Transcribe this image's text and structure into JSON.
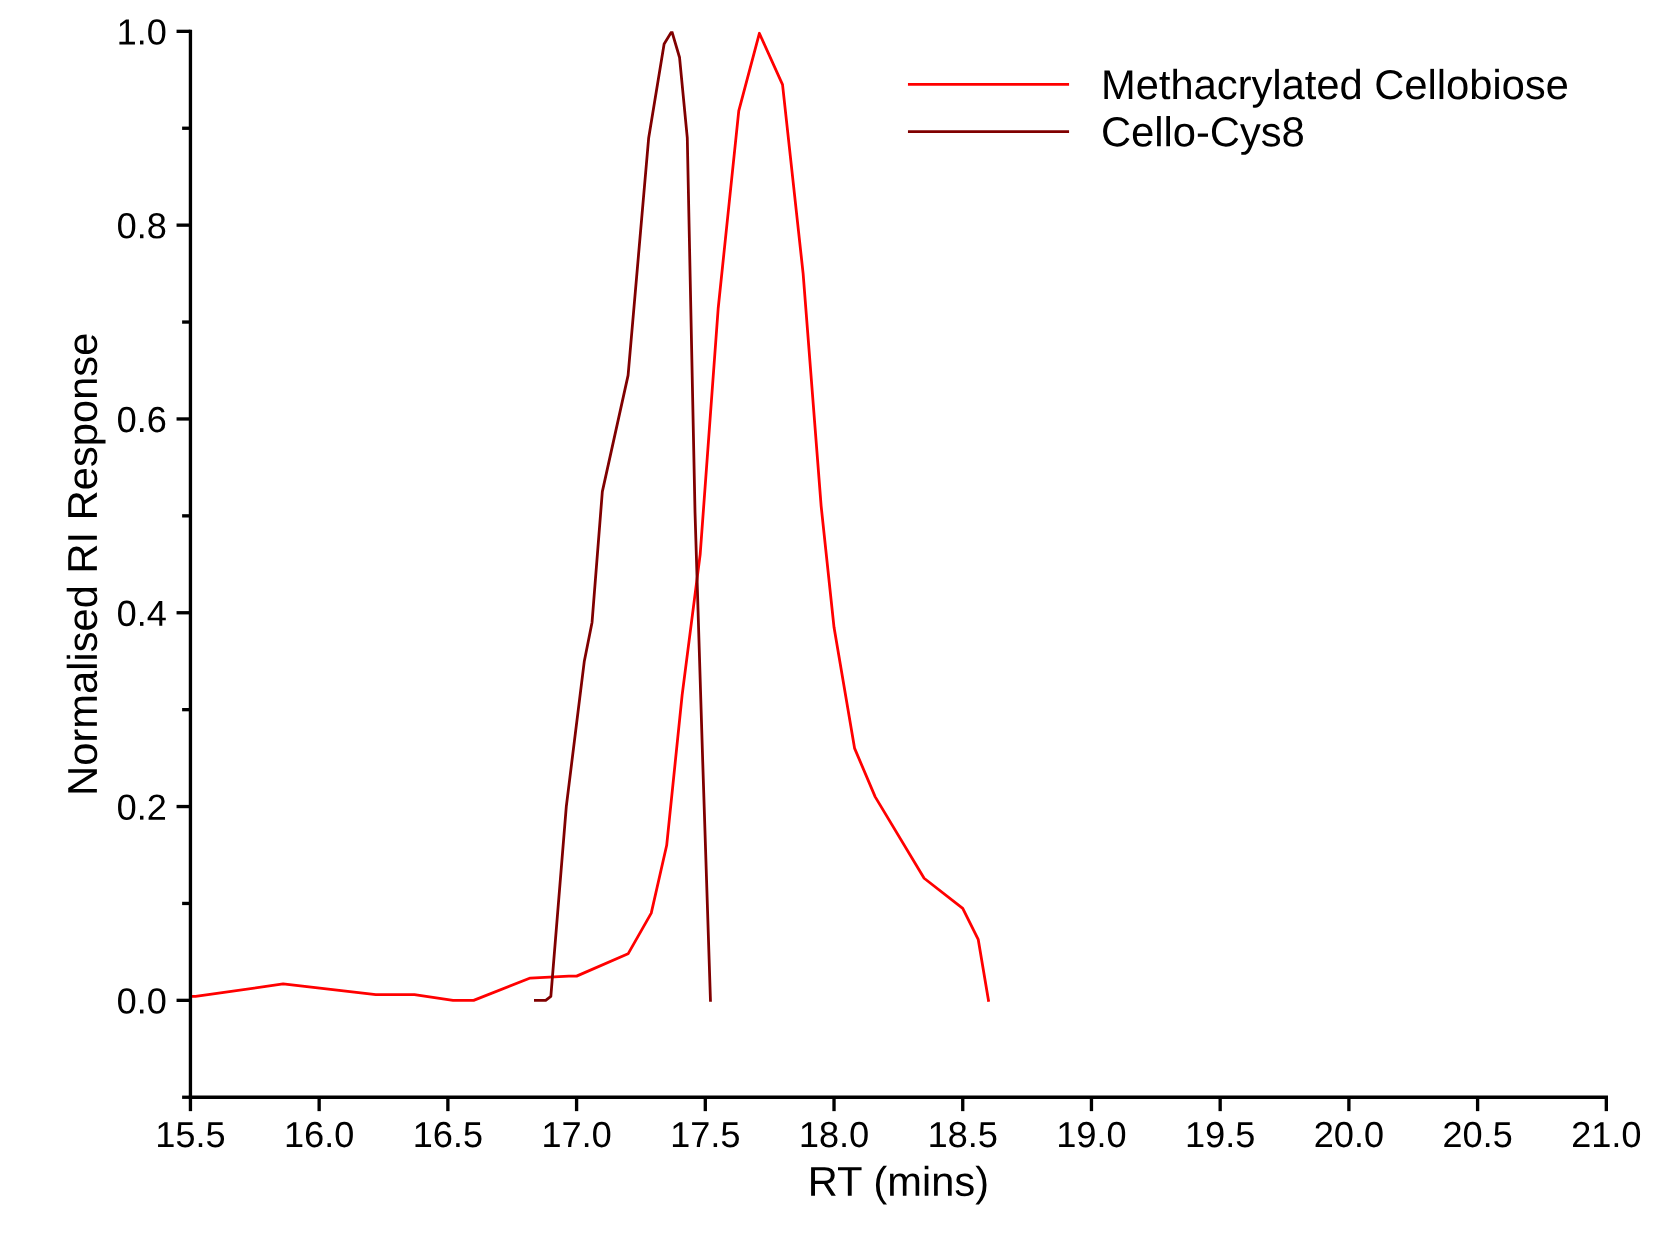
{
  "chart_data": {
    "type": "line",
    "xlabel": "RT (mins)",
    "ylabel": "Normalised RI Response",
    "xlim": [
      15.5,
      21.0
    ],
    "xticks": [
      {
        "value": 15.5,
        "label": "15.5"
      },
      {
        "value": 16.0,
        "label": "16.0"
      },
      {
        "value": 16.5,
        "label": "16.5"
      },
      {
        "value": 17.0,
        "label": "17.0"
      },
      {
        "value": 17.5,
        "label": "17.5"
      },
      {
        "value": 18.0,
        "label": "18.0"
      },
      {
        "value": 18.5,
        "label": "18.5"
      },
      {
        "value": 19.0,
        "label": "19.0"
      },
      {
        "value": 19.5,
        "label": "19.5"
      },
      {
        "value": 20.0,
        "label": "20.0"
      },
      {
        "value": 20.5,
        "label": "20.5"
      },
      {
        "value": 21.0,
        "label": "21.0"
      }
    ],
    "ylim": [
      -0.1,
      1.0
    ],
    "yticks": [
      {
        "value": 0.0,
        "label": "0.0"
      },
      {
        "value": 0.2,
        "label": "0.2"
      },
      {
        "value": 0.4,
        "label": "0.4"
      },
      {
        "value": 0.6,
        "label": "0.6"
      },
      {
        "value": 0.8,
        "label": "0.8"
      },
      {
        "value": 1.0,
        "label": "1.0"
      }
    ],
    "grid": false,
    "legend": "top right",
    "marker": "none",
    "line_style": "solid",
    "series": [
      {
        "name": "Methacrylated Cellobiose",
        "color": "#ff0000",
        "x": [
          15.5,
          15.52,
          15.86,
          16.22,
          16.37,
          16.52,
          16.6,
          16.82,
          16.97,
          17.0,
          17.2,
          17.29,
          17.35,
          17.41,
          17.48,
          17.55,
          17.63,
          17.71,
          17.8,
          17.88,
          17.95,
          18.0,
          18.08,
          18.16,
          18.35,
          18.5,
          18.56,
          18.6
        ],
        "values": [
          0.004,
          0.004,
          0.017,
          0.006,
          0.006,
          0.0,
          0.0,
          0.023,
          0.025,
          0.025,
          0.048,
          0.09,
          0.16,
          0.315,
          0.46,
          0.714,
          0.918,
          0.998,
          0.945,
          0.75,
          0.51,
          0.385,
          0.26,
          0.21,
          0.126,
          0.095,
          0.063,
          0.0
        ]
      },
      {
        "name": "Cello-Cys8",
        "color": "#800000",
        "x": [
          16.84,
          16.88,
          16.9,
          16.96,
          17.03,
          17.06,
          17.1,
          17.2,
          17.28,
          17.34,
          17.37,
          17.4,
          17.43,
          17.46,
          17.49,
          17.52
        ],
        "values": [
          0.0,
          0.0,
          0.004,
          0.2,
          0.35,
          0.39,
          0.525,
          0.645,
          0.89,
          0.987,
          1.0,
          0.973,
          0.89,
          0.504,
          0.246,
          0.0
        ]
      }
    ]
  }
}
